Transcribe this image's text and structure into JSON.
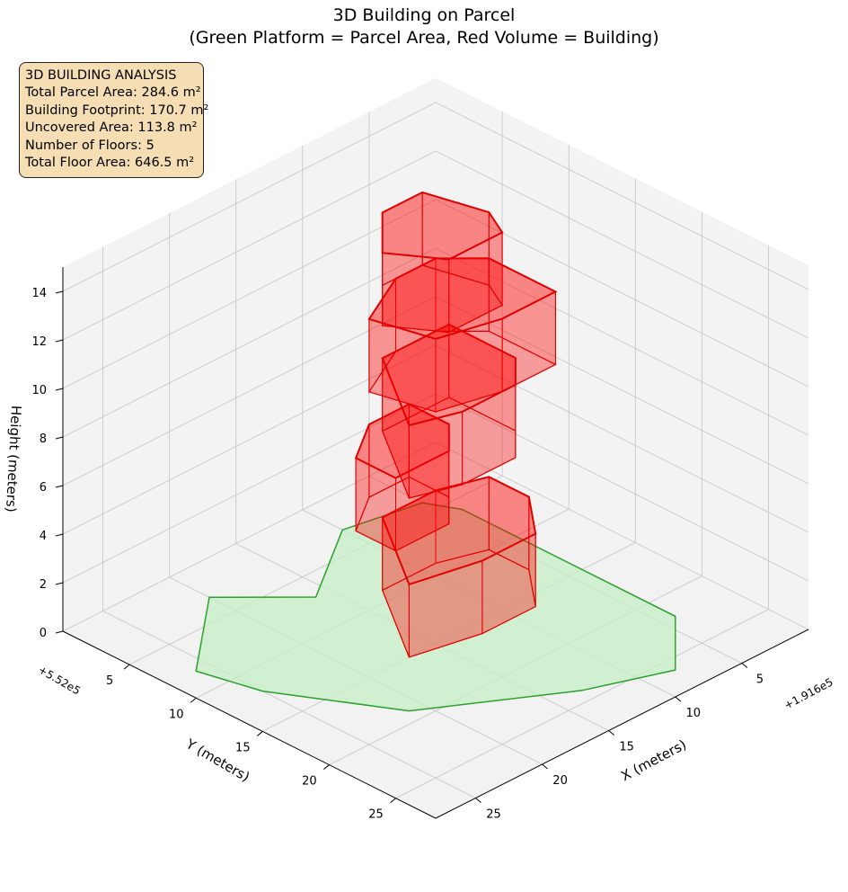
{
  "title": {
    "line1": "3D Building on Parcel",
    "line2": "(Green Platform = Parcel Area, Red Volume = Building)"
  },
  "info_box": {
    "heading": "3D BUILDING ANALYSIS",
    "total_parcel_area": "Total Parcel Area: 284.6 m²",
    "building_footprint": "Building Footprint: 170.7 m²",
    "uncovered_area": "Uncovered Area: 113.8 m²",
    "number_of_floors": "Number of Floors: 5",
    "total_floor_area": "Total Floor Area: 646.5 m²"
  },
  "colors": {
    "parcel_fill": "#c6efc6",
    "parcel_edge": "#2ca02c",
    "building_fill": "#ff0000",
    "building_edge": "#e00000",
    "info_box_bg": "#f5deb3",
    "pane": "#f2f2f2",
    "grid": "#c8c8c8"
  },
  "chart_data": {
    "type": "3d-polygon",
    "title": "3D Building on Parcel\n(Green Platform = Parcel Area, Red Volume = Building)",
    "xlabel": "X (meters)",
    "ylabel": "Y (meters)",
    "zlabel": "Height (meters)",
    "x_offset_label": "+1.916e5",
    "y_offset_label": "+5.52e5",
    "xlim": [
      0,
      28
    ],
    "ylim": [
      0,
      28
    ],
    "zlim": [
      0,
      15
    ],
    "x_ticks": [
      5,
      10,
      15,
      20,
      25
    ],
    "y_ticks": [
      5,
      10,
      15,
      20,
      25
    ],
    "z_ticks": [
      0,
      2,
      4,
      6,
      8,
      10,
      12,
      14
    ],
    "grid": true,
    "view": {
      "elev": 20,
      "azim": 45
    },
    "parcel": {
      "name": "Parcel Area",
      "z": 0,
      "polygon": [
        [
          4,
          6
        ],
        [
          5,
          4
        ],
        [
          10,
          3
        ],
        [
          16,
          7
        ],
        [
          20,
          3
        ],
        [
          26,
          8
        ],
        [
          25,
          12
        ],
        [
          21,
          19
        ],
        [
          13,
          24
        ],
        [
          8,
          26
        ],
        [
          4,
          22
        ]
      ]
    },
    "building": {
      "name": "Building",
      "floors": 5,
      "floor_height": 3,
      "footprints": [
        [
          [
            6,
            13
          ],
          [
            8.5,
            16
          ],
          [
            12.5,
            16
          ],
          [
            17,
            15
          ],
          [
            13,
            9
          ],
          [
            9,
            9
          ],
          [
            6,
            10
          ]
        ],
        [
          [
            9,
            7
          ],
          [
            12,
            7
          ],
          [
            15,
            9
          ],
          [
            15,
            12
          ],
          [
            11,
            12
          ],
          [
            9,
            10
          ]
        ],
        [
          [
            7,
            13
          ],
          [
            9,
            15
          ],
          [
            13,
            15
          ],
          [
            16,
            14
          ],
          [
            12,
            8
          ],
          [
            7,
            8
          ]
        ],
        [
          [
            6,
            15
          ],
          [
            6,
            10
          ],
          [
            8,
            8
          ],
          [
            11,
            8
          ],
          [
            15,
            10
          ],
          [
            14,
            14
          ],
          [
            10,
            15
          ]
        ],
        [
          [
            8,
            12
          ],
          [
            9,
            14
          ],
          [
            13,
            14
          ],
          [
            15,
            11
          ],
          [
            12,
            8
          ],
          [
            9,
            8
          ]
        ]
      ]
    }
  }
}
